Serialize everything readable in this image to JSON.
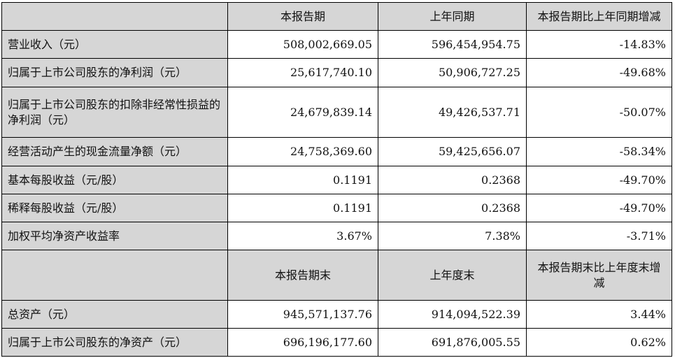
{
  "header1": {
    "col2": "本报告期",
    "col3": "上年同期",
    "col4": "本报告期比上年同期增减"
  },
  "rows1": [
    {
      "label": "营业收入（元）",
      "current": "508,002,669.05",
      "prior": "596,454,954.75",
      "change": "-14.83%"
    },
    {
      "label": "归属于上市公司股东的净利润（元）",
      "current": "25,617,740.10",
      "prior": "50,906,727.25",
      "change": "-49.68%"
    },
    {
      "label": "归属于上市公司股东的扣除非经常性损益的净利润（元）",
      "current": "24,679,839.14",
      "prior": "49,426,537.71",
      "change": "-50.07%"
    },
    {
      "label": "经营活动产生的现金流量净额（元）",
      "current": "24,758,369.60",
      "prior": "59,425,656.07",
      "change": "-58.34%"
    },
    {
      "label": "基本每股收益（元/股）",
      "current": "0.1191",
      "prior": "0.2368",
      "change": "-49.70%"
    },
    {
      "label": "稀释每股收益（元/股）",
      "current": "0.1191",
      "prior": "0.2368",
      "change": "-49.70%"
    },
    {
      "label": "加权平均净资产收益率",
      "current": "3.67%",
      "prior": "7.38%",
      "change": "-3.71%"
    }
  ],
  "header2": {
    "col2": "本报告期末",
    "col3": "上年度末",
    "col4": "本报告期末比上年度末增减"
  },
  "rows2": [
    {
      "label": "总资产（元）",
      "current": "945,571,137.76",
      "prior": "914,094,522.39",
      "change": "3.44%"
    },
    {
      "label": "归属于上市公司股东的净资产（元）",
      "current": "696,196,177.60",
      "prior": "691,876,005.55",
      "change": "0.62%"
    }
  ]
}
